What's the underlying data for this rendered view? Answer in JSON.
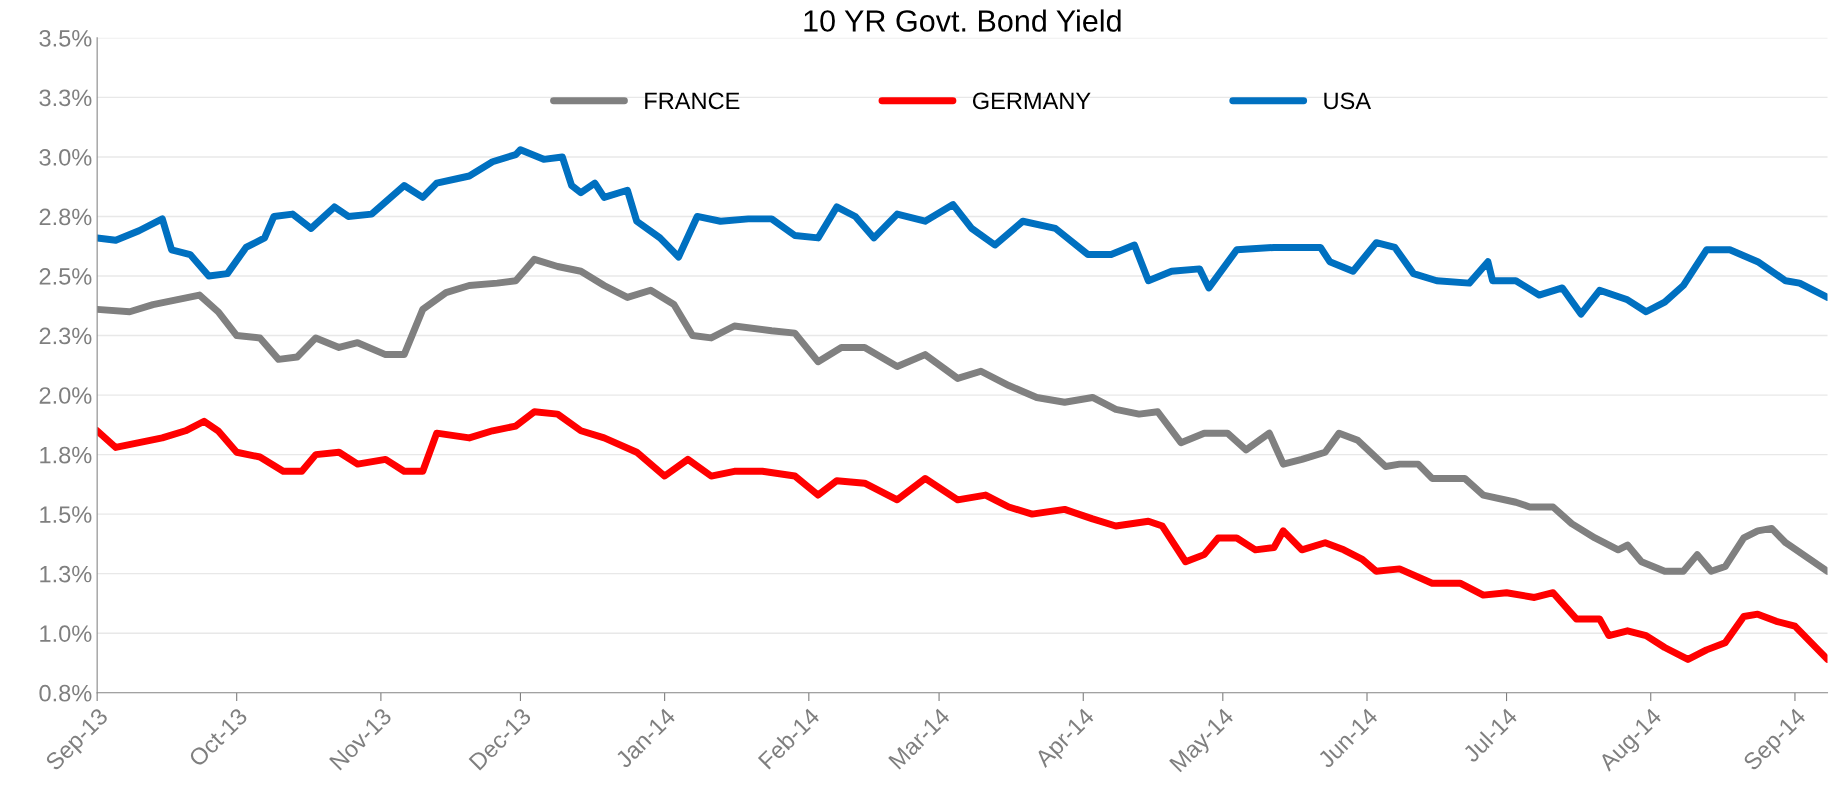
{
  "chart_data": {
    "type": "line",
    "title": "10 YR Govt. Bond Yield",
    "series": [
      {
        "name": "FRANCE",
        "color": "#808080",
        "x": [
          "2013-09-01",
          "2013-09-08",
          "2013-09-13",
          "2013-09-18",
          "2013-09-23",
          "2013-09-27",
          "2013-10-01",
          "2013-10-06",
          "2013-10-10",
          "2013-10-14",
          "2013-10-18",
          "2013-10-23",
          "2013-10-27",
          "2013-11-02",
          "2013-11-06",
          "2013-11-10",
          "2013-11-15",
          "2013-11-20",
          "2013-11-26",
          "2013-11-30",
          "2013-12-04",
          "2013-12-09",
          "2013-12-14",
          "2013-12-19",
          "2013-12-24",
          "2013-12-29",
          "2014-01-03",
          "2014-01-07",
          "2014-01-11",
          "2014-01-16",
          "2014-01-24",
          "2014-01-29",
          "2014-02-03",
          "2014-02-08",
          "2014-02-13",
          "2014-02-20",
          "2014-02-26",
          "2014-03-05",
          "2014-03-10",
          "2014-03-16",
          "2014-03-22",
          "2014-03-28",
          "2014-04-03",
          "2014-04-08",
          "2014-04-13",
          "2014-04-17",
          "2014-04-22",
          "2014-04-27",
          "2014-05-02",
          "2014-05-06",
          "2014-05-11",
          "2014-05-14",
          "2014-05-18",
          "2014-05-23",
          "2014-05-26",
          "2014-05-30",
          "2014-06-05",
          "2014-06-08",
          "2014-06-12",
          "2014-06-15",
          "2014-06-22",
          "2014-06-26",
          "2014-07-03",
          "2014-07-06",
          "2014-07-11",
          "2014-07-15",
          "2014-07-20",
          "2014-07-25",
          "2014-07-27",
          "2014-07-30",
          "2014-08-04",
          "2014-08-08",
          "2014-08-11",
          "2014-08-14",
          "2014-08-17",
          "2014-08-21",
          "2014-08-24",
          "2014-08-27",
          "2014-08-30",
          "2014-09-08"
        ],
        "values": [
          2.36,
          2.35,
          2.38,
          2.4,
          2.42,
          2.35,
          2.25,
          2.24,
          2.15,
          2.16,
          2.24,
          2.2,
          2.22,
          2.17,
          2.17,
          2.36,
          2.43,
          2.46,
          2.47,
          2.48,
          2.57,
          2.54,
          2.52,
          2.46,
          2.41,
          2.44,
          2.38,
          2.25,
          2.24,
          2.29,
          2.27,
          2.26,
          2.14,
          2.2,
          2.2,
          2.12,
          2.17,
          2.07,
          2.1,
          2.04,
          1.99,
          1.97,
          1.99,
          1.94,
          1.92,
          1.93,
          1.8,
          1.84,
          1.84,
          1.77,
          1.84,
          1.71,
          1.73,
          1.76,
          1.84,
          1.81,
          1.7,
          1.71,
          1.71,
          1.65,
          1.65,
          1.58,
          1.55,
          1.53,
          1.53,
          1.46,
          1.4,
          1.35,
          1.37,
          1.3,
          1.26,
          1.26,
          1.33,
          1.26,
          1.28,
          1.4,
          1.43,
          1.44,
          1.38,
          1.26
        ]
      },
      {
        "name": "GERMANY",
        "color": "#ff0000",
        "x": [
          "2013-09-01",
          "2013-09-05",
          "2013-09-10",
          "2013-09-15",
          "2013-09-20",
          "2013-09-24",
          "2013-09-27",
          "2013-10-01",
          "2013-10-06",
          "2013-10-11",
          "2013-10-15",
          "2013-10-18",
          "2013-10-23",
          "2013-10-27",
          "2013-11-02",
          "2013-11-06",
          "2013-11-10",
          "2013-11-13",
          "2013-11-20",
          "2013-11-25",
          "2013-11-30",
          "2013-12-04",
          "2013-12-09",
          "2013-12-14",
          "2013-12-19",
          "2013-12-26",
          "2014-01-01",
          "2014-01-06",
          "2014-01-11",
          "2014-01-16",
          "2014-01-22",
          "2014-01-29",
          "2014-02-03",
          "2014-02-07",
          "2014-02-13",
          "2014-02-20",
          "2014-02-26",
          "2014-03-05",
          "2014-03-11",
          "2014-03-16",
          "2014-03-21",
          "2014-03-28",
          "2014-04-03",
          "2014-04-08",
          "2014-04-15",
          "2014-04-18",
          "2014-04-23",
          "2014-04-27",
          "2014-04-30",
          "2014-05-04",
          "2014-05-08",
          "2014-05-12",
          "2014-05-14",
          "2014-05-18",
          "2014-05-23",
          "2014-05-27",
          "2014-05-31",
          "2014-06-03",
          "2014-06-08",
          "2014-06-15",
          "2014-06-21",
          "2014-06-26",
          "2014-07-01",
          "2014-07-07",
          "2014-07-11",
          "2014-07-16",
          "2014-07-21",
          "2014-07-23",
          "2014-07-27",
          "2014-07-31",
          "2014-08-04",
          "2014-08-09",
          "2014-08-13",
          "2014-08-17",
          "2014-08-21",
          "2014-08-24",
          "2014-08-28",
          "2014-09-01",
          "2014-09-08"
        ],
        "values": [
          1.85,
          1.78,
          1.8,
          1.82,
          1.85,
          1.89,
          1.85,
          1.76,
          1.74,
          1.68,
          1.68,
          1.75,
          1.76,
          1.71,
          1.73,
          1.68,
          1.68,
          1.84,
          1.82,
          1.85,
          1.87,
          1.93,
          1.92,
          1.85,
          1.82,
          1.76,
          1.66,
          1.73,
          1.66,
          1.68,
          1.68,
          1.66,
          1.58,
          1.64,
          1.63,
          1.56,
          1.65,
          1.56,
          1.58,
          1.53,
          1.5,
          1.52,
          1.48,
          1.45,
          1.47,
          1.45,
          1.3,
          1.33,
          1.4,
          1.4,
          1.35,
          1.36,
          1.43,
          1.35,
          1.38,
          1.35,
          1.31,
          1.26,
          1.27,
          1.21,
          1.21,
          1.16,
          1.17,
          1.15,
          1.17,
          1.06,
          1.06,
          0.99,
          1.01,
          0.99,
          0.94,
          0.89,
          0.93,
          0.96,
          1.07,
          1.08,
          1.05,
          1.03,
          0.89
        ]
      },
      {
        "name": "USA",
        "color": "#0070c0",
        "x": [
          "2013-09-01",
          "2013-09-05",
          "2013-09-10",
          "2013-09-15",
          "2013-09-17",
          "2013-09-21",
          "2013-09-25",
          "2013-09-29",
          "2013-10-03",
          "2013-10-07",
          "2013-10-09",
          "2013-10-13",
          "2013-10-17",
          "2013-10-22",
          "2013-10-25",
          "2013-10-30",
          "2013-11-06",
          "2013-11-10",
          "2013-11-13",
          "2013-11-20",
          "2013-11-25",
          "2013-11-30",
          "2013-12-01",
          "2013-12-06",
          "2013-12-10",
          "2013-12-12",
          "2013-12-14",
          "2013-12-17",
          "2013-12-19",
          "2013-12-24",
          "2013-12-26",
          "2013-12-31",
          "2014-01-04",
          "2014-01-08",
          "2014-01-13",
          "2014-01-19",
          "2014-01-24",
          "2014-01-29",
          "2014-02-03",
          "2014-02-07",
          "2014-02-11",
          "2014-02-15",
          "2014-02-20",
          "2014-02-26",
          "2014-03-04",
          "2014-03-08",
          "2014-03-13",
          "2014-03-19",
          "2014-03-26",
          "2014-04-02",
          "2014-04-07",
          "2014-04-12",
          "2014-04-15",
          "2014-04-20",
          "2014-04-26",
          "2014-04-28",
          "2014-05-04",
          "2014-05-12",
          "2014-05-17",
          "2014-05-22",
          "2014-05-24",
          "2014-05-29",
          "2014-06-03",
          "2014-06-07",
          "2014-06-11",
          "2014-06-16",
          "2014-06-23",
          "2014-06-27",
          "2014-06-28",
          "2014-07-03",
          "2014-07-08",
          "2014-07-13",
          "2014-07-17",
          "2014-07-21",
          "2014-07-27",
          "2014-07-31",
          "2014-08-04",
          "2014-08-08",
          "2014-08-13",
          "2014-08-18",
          "2014-08-24",
          "2014-08-30",
          "2014-09-02",
          "2014-09-08"
        ],
        "values": [
          2.66,
          2.65,
          2.69,
          2.74,
          2.61,
          2.59,
          2.5,
          2.51,
          2.62,
          2.66,
          2.75,
          2.76,
          2.7,
          2.79,
          2.75,
          2.76,
          2.88,
          2.83,
          2.89,
          2.92,
          2.98,
          3.01,
          3.03,
          2.99,
          3.0,
          2.88,
          2.85,
          2.89,
          2.83,
          2.86,
          2.73,
          2.66,
          2.58,
          2.75,
          2.73,
          2.74,
          2.74,
          2.67,
          2.66,
          2.79,
          2.75,
          2.66,
          2.76,
          2.73,
          2.8,
          2.7,
          2.63,
          2.73,
          2.7,
          2.59,
          2.59,
          2.63,
          2.48,
          2.52,
          2.53,
          2.45,
          2.61,
          2.62,
          2.62,
          2.62,
          2.56,
          2.52,
          2.64,
          2.62,
          2.51,
          2.48,
          2.47,
          2.56,
          2.48,
          2.48,
          2.42,
          2.45,
          2.34,
          2.44,
          2.4,
          2.35,
          2.39,
          2.46,
          2.61,
          2.61,
          2.56,
          2.48,
          2.47,
          2.41
        ]
      }
    ],
    "xlim": [
      "2013-09-01",
      "2014-09-08"
    ],
    "xticks": [
      {
        "value": "2013-09-01",
        "label": "Sep-13"
      },
      {
        "value": "2013-10-01",
        "label": "Oct-13"
      },
      {
        "value": "2013-11-01",
        "label": "Nov-13"
      },
      {
        "value": "2013-12-01",
        "label": "Dec-13"
      },
      {
        "value": "2014-01-01",
        "label": "Jan-14"
      },
      {
        "value": "2014-02-01",
        "label": "Feb-14"
      },
      {
        "value": "2014-03-01",
        "label": "Mar-14"
      },
      {
        "value": "2014-04-01",
        "label": "Apr-14"
      },
      {
        "value": "2014-05-01",
        "label": "May-14"
      },
      {
        "value": "2014-06-01",
        "label": "Jun-14"
      },
      {
        "value": "2014-07-01",
        "label": "Jul-14"
      },
      {
        "value": "2014-08-01",
        "label": "Aug-14"
      },
      {
        "value": "2014-09-01",
        "label": "Sep-14"
      }
    ],
    "ylim": [
      0.75,
      3.5
    ],
    "yticks": [
      {
        "value": 0.75,
        "label": "0.8%"
      },
      {
        "value": 1.0,
        "label": "1.0%"
      },
      {
        "value": 1.25,
        "label": "1.3%"
      },
      {
        "value": 1.5,
        "label": "1.5%"
      },
      {
        "value": 1.75,
        "label": "1.8%"
      },
      {
        "value": 2.0,
        "label": "2.0%"
      },
      {
        "value": 2.25,
        "label": "2.3%"
      },
      {
        "value": 2.5,
        "label": "2.5%"
      },
      {
        "value": 2.75,
        "label": "2.8%"
      },
      {
        "value": 3.0,
        "label": "3.0%"
      },
      {
        "value": 3.25,
        "label": "3.3%"
      },
      {
        "value": 3.5,
        "label": "3.5%"
      }
    ],
    "grid": "y",
    "legend": "top",
    "marker": "none",
    "line_style": "solid"
  }
}
